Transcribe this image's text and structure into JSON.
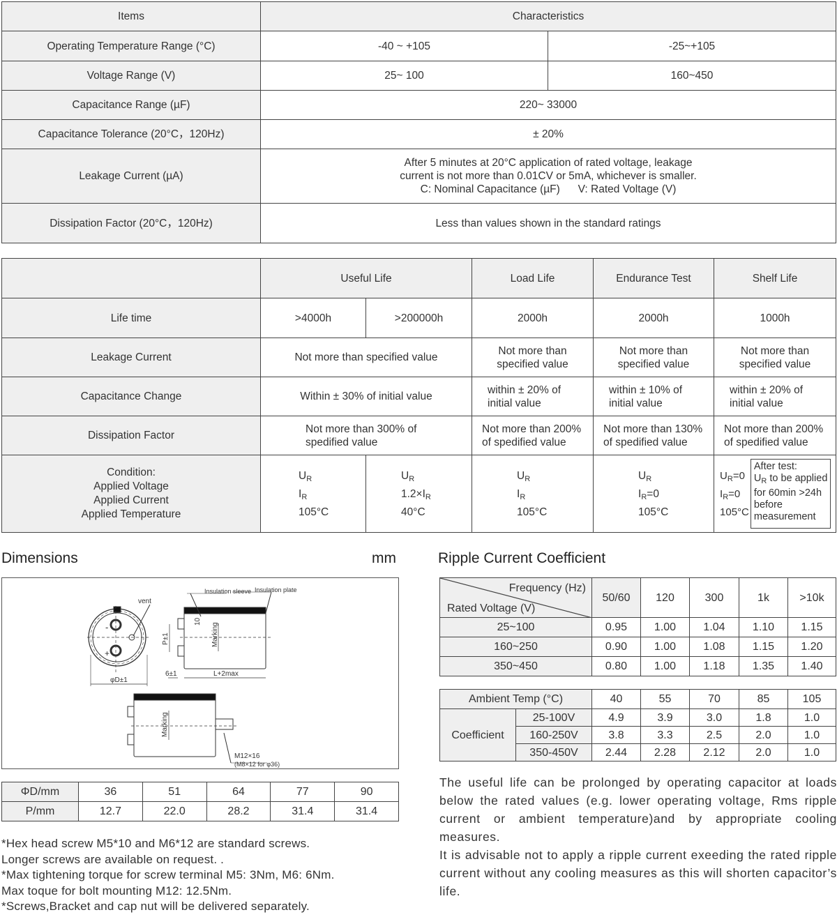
{
  "general": {
    "headers": [
      "Items",
      "Characteristics"
    ],
    "rows": [
      {
        "item": "Operating Temperature Range (°C)",
        "values": [
          "-40 ~ +105",
          "-25~+105"
        ]
      },
      {
        "item": "Voltage Range (V)",
        "values": [
          "25~ 100",
          "160~450"
        ]
      },
      {
        "item": "Capacitance Range (µF)",
        "value": "220~ 33000"
      },
      {
        "item": "Capacitance Tolerance (20°C，120Hz)",
        "value": "± 20%"
      },
      {
        "item": "Leakage Current (µA)",
        "lines": [
          "After 5 minutes at 20°C application of rated voltage, leakage",
          "current  is not more than 0.01CV or 5mA, whichever  is  smaller.",
          "C: Nominal Capacitance (µF)      V: Rated Voltage (V)"
        ]
      },
      {
        "item": "Dissipation Factor (20°C，120Hz)",
        "value": "Less  than values shown in the standard ratings"
      }
    ]
  },
  "life": {
    "headers": [
      "Useful Life",
      "Load Life",
      "Endurance Test",
      "Shelf  Life"
    ],
    "lifetime": {
      "label": "Life time",
      "values": [
        ">4000h",
        ">200000h",
        "2000h",
        "2000h",
        "1000h"
      ]
    },
    "leakage": {
      "label": "Leakage Current",
      "values": [
        "Not more than specified value",
        "Not more than specified value",
        "Not more than specified value",
        "Not more than specified value"
      ]
    },
    "capchange": {
      "label": "Capacitance Change",
      "values": [
        "Within ± 30% of initial value",
        "within ±  20% of initial value",
        "within ±  10% of initial value",
        "within ±  20% of initial value"
      ]
    },
    "df": {
      "label": "Dissipation Factor",
      "values": [
        "Not more than 300% of spedified value",
        "Not more than 200% of spedified value",
        "Not more than 130% of spedified value",
        "Not more than 200% of spedified value"
      ]
    },
    "condition": {
      "label": [
        "Condition:",
        "Applied Voltage",
        "Applied Current",
        "Applied Temperature"
      ],
      "cols": [
        {
          "u": "U",
          "i": "I",
          "i_suffix": "",
          "t": "105°C"
        },
        {
          "u": "U",
          "i": "1.2×I",
          "i_suffix": "",
          "t": "40°C"
        },
        {
          "u": "U",
          "i": "I",
          "i_suffix": "",
          "t": "105°C"
        },
        {
          "u": "U",
          "i": "I",
          "i_suffix": "=0",
          "t": "105°C"
        },
        {
          "u": "U",
          "u_suffix": "=0",
          "i": "I",
          "i_suffix": "=0",
          "t": "105°C"
        }
      ],
      "sub": "R",
      "note": {
        "l1": "After test:",
        "l2a": "U",
        "l2b": " to be applied",
        "l3": "for 60min >24h",
        "l4": "before",
        "l5": "measurement"
      }
    }
  },
  "dimensions": {
    "title": "Dimensions",
    "unit": "mm",
    "labels": {
      "vent": "vent",
      "sleeve": "Insulation sleeve",
      "plate": "Insulation plate",
      "marking": "Marking",
      "p": "P±1",
      "ten": "10",
      "d": "φD±1",
      "six": "6±1",
      "l": "L+2max",
      "minus": "-",
      "plus": "+",
      "bolt1": "M12×16",
      "bolt2": "(M8×12 for φ36)"
    },
    "table": {
      "d_label": "ΦD/mm",
      "p_label": "P/mm",
      "d": [
        "36",
        "51",
        "64",
        "77",
        "90"
      ],
      "p": [
        "12.7",
        "22.0",
        "28.2",
        "31.4",
        "31.4"
      ]
    },
    "notes": [
      "*Hex  head screw M5*10 and M6*12 are standard screws.",
      "Longer screws  are available on request. .",
      "*Max  tightening  torque for screw terminal M5: 3Nm, M6: 6Nm.",
      "Max  toque for bolt mounting M12: 12.5Nm.",
      "*Screws,Bracket and cap nut will be delivered separately."
    ]
  },
  "ripple": {
    "title": "Ripple Current Coefficient",
    "freq_label": "Frequency (Hz)",
    "volt_label": "Rated Voltage (V)",
    "freqs": [
      "50/60",
      "120",
      "300",
      "1k",
      ">10k"
    ],
    "rows": [
      {
        "v": "25~100",
        "c": [
          "0.95",
          "1.00",
          "1.04",
          "1.10",
          "1.15"
        ]
      },
      {
        "v": "160~250",
        "c": [
          "0.90",
          "1.00",
          "1.08",
          "1.15",
          "1.20"
        ]
      },
      {
        "v": "350~450",
        "c": [
          "0.80",
          "1.00",
          "1.18",
          "1.35",
          "1.40"
        ]
      }
    ],
    "temp_label": "Ambient  Temp (°C)",
    "coef_label": "Coefficient",
    "temps": [
      "40",
      "55",
      "70",
      "85",
      "105"
    ],
    "trows": [
      {
        "v": "25-100V",
        "c": [
          "4.9",
          "3.9",
          "3.0",
          "1.8",
          "1.0"
        ]
      },
      {
        "v": "160-250V",
        "c": [
          "3.8",
          "3.3",
          "2.5",
          "2.0",
          "1.0"
        ]
      },
      {
        "v": "350-450V",
        "c": [
          "2.44",
          "2.28",
          "2.12",
          "2.0",
          "1.0"
        ]
      }
    ],
    "paragraphs": [
      "The useful life can be prolonged by operating capacitor at loads below the rated  values (e.g. lower operating voltage, Rms ripple current or ambient temperature)and by appropriate cooling measures.",
      "It is advisable not to apply a ripple current exeeding the rated ripple current without any cooling measures as this will shorten capacitor’s life."
    ]
  }
}
